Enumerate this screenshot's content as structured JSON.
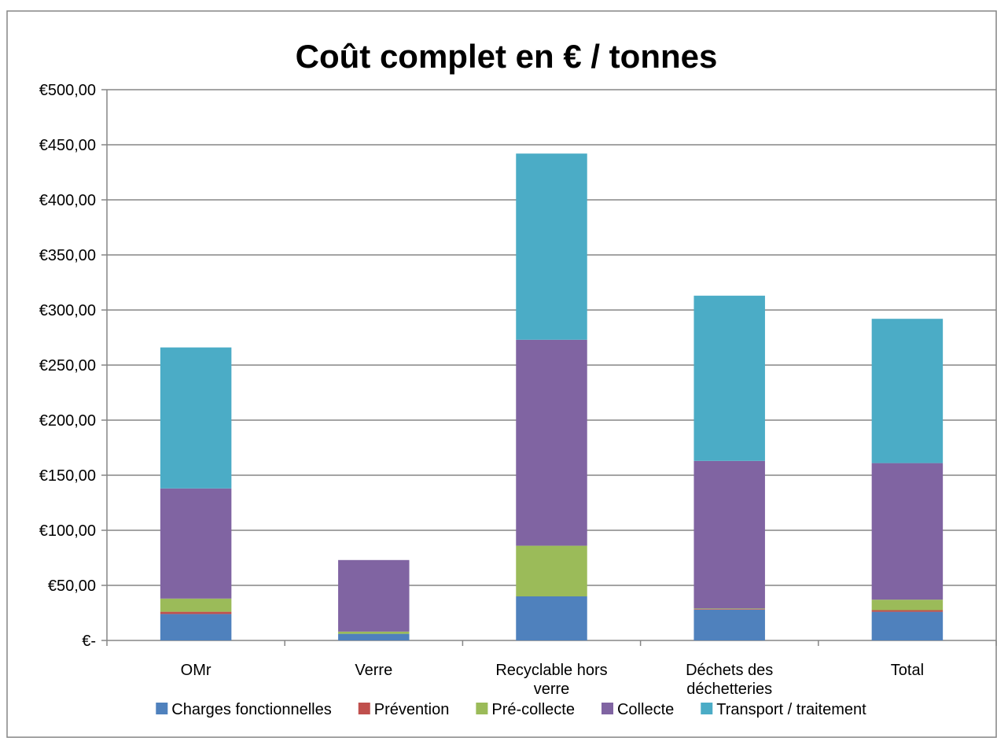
{
  "chart_data": {
    "type": "bar",
    "stacked": true,
    "title": "Coût complet en € / tonnes",
    "xlabel": "",
    "ylabel": "",
    "ylim": [
      0,
      500
    ],
    "yticks": [
      0,
      50,
      100,
      150,
      200,
      250,
      300,
      350,
      400,
      450,
      500
    ],
    "ytick_labels": [
      "€-",
      "€50,00",
      "€100,00",
      "€150,00",
      "€200,00",
      "€250,00",
      "€300,00",
      "€350,00",
      "€400,00",
      "€450,00",
      "€500,00"
    ],
    "grid": true,
    "legend_position": "bottom",
    "categories": [
      [
        "OMr"
      ],
      [
        "Verre"
      ],
      [
        "Recyclable hors",
        "verre"
      ],
      [
        "Déchets des",
        "déchetteries"
      ],
      [
        "Total"
      ]
    ],
    "series": [
      {
        "name": "Charges fonctionnelles",
        "color": "#4F81BD",
        "values": [
          24,
          6,
          40,
          28,
          26
        ]
      },
      {
        "name": "Prévention",
        "color": "#C0504D",
        "values": [
          2,
          0,
          0,
          0.5,
          1.5
        ]
      },
      {
        "name": "Pré-collecte",
        "color": "#9BBB59",
        "values": [
          12,
          2,
          46,
          0.5,
          9.5
        ]
      },
      {
        "name": "Collecte",
        "color": "#8064A2",
        "values": [
          100,
          65,
          187,
          134,
          124
        ]
      },
      {
        "name": "Transport / traitement",
        "color": "#4BACC6",
        "values": [
          128,
          0,
          169,
          150,
          131
        ]
      }
    ]
  }
}
